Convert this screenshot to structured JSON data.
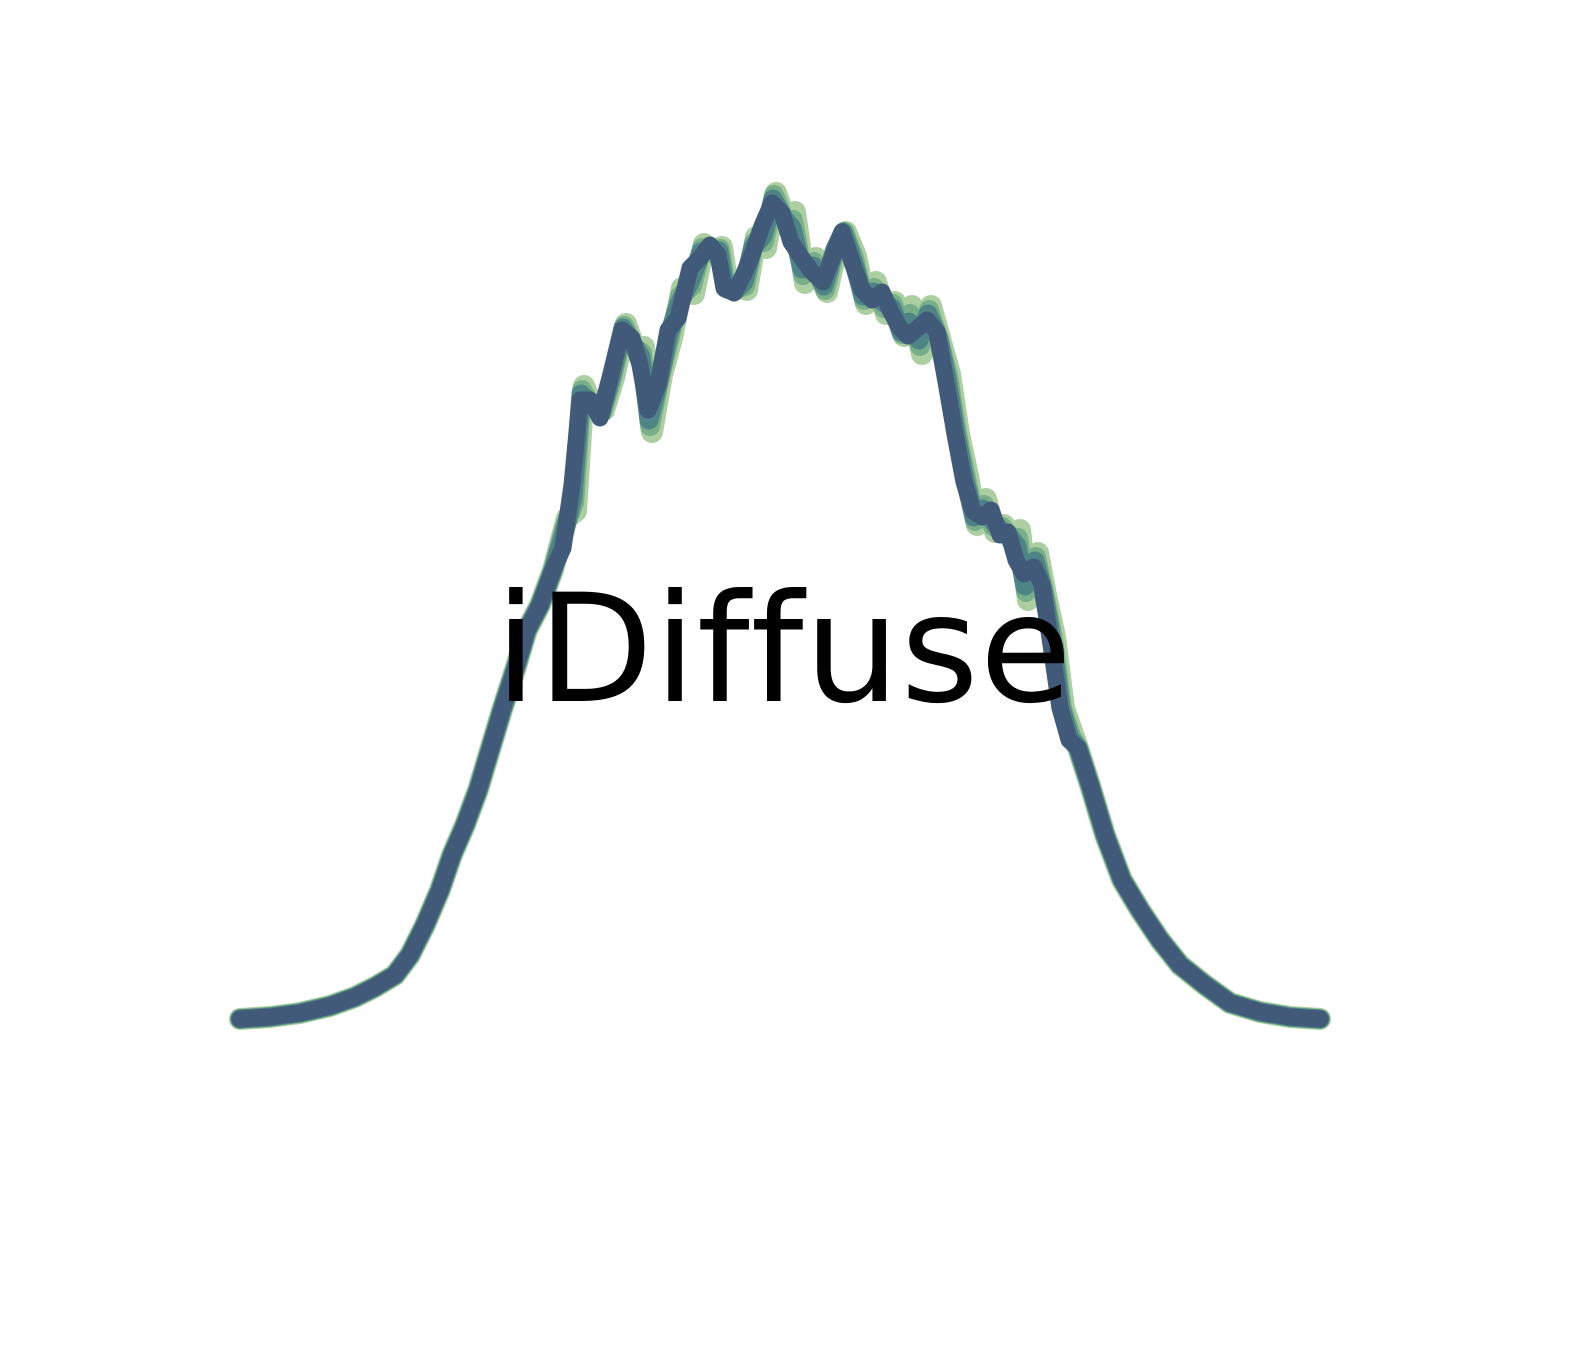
{
  "logo": {
    "wordmark": "iDiffuse",
    "icon": "noisy-bell-curve-icon",
    "wordmark_color": "#000000",
    "curve_colors": [
      "#9cc790",
      "#6ea985",
      "#4a7f86",
      "#415a7a"
    ]
  }
}
